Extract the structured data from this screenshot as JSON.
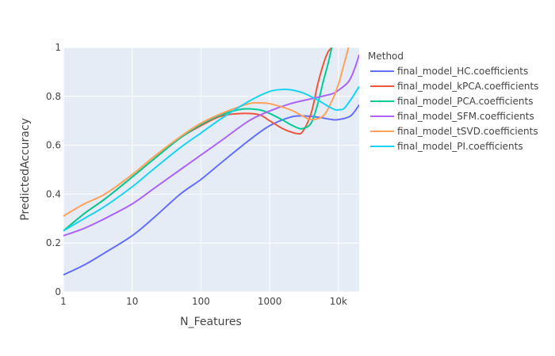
{
  "chart_data": {
    "type": "line",
    "xlabel": "N_Features",
    "ylabel": "PredictedAccuracy",
    "x_scale": "log",
    "xlim": [
      1,
      20000
    ],
    "ylim": [
      0,
      1
    ],
    "x_ticks": [
      {
        "value": 1,
        "label": "1"
      },
      {
        "value": 10,
        "label": "10"
      },
      {
        "value": 100,
        "label": "100"
      },
      {
        "value": 1000,
        "label": "1000"
      },
      {
        "value": 10000,
        "label": "10k"
      }
    ],
    "y_ticks": [
      {
        "value": 0,
        "label": "0"
      },
      {
        "value": 0.2,
        "label": "0.2"
      },
      {
        "value": 0.4,
        "label": "0.4"
      },
      {
        "value": 0.6,
        "label": "0.6"
      },
      {
        "value": 0.8,
        "label": "0.8"
      },
      {
        "value": 1,
        "label": "1"
      }
    ],
    "grid": true,
    "legend_title": "Method",
    "legend_position": "right",
    "series": [
      {
        "name": "final_model_HC.coefficients",
        "color": "#636efa",
        "x": [
          1,
          2,
          4,
          10,
          20,
          50,
          100,
          200,
          500,
          1000,
          2000,
          3000,
          5000,
          8000,
          10000,
          15000,
          20000
        ],
        "y": [
          0.07,
          0.11,
          0.16,
          0.23,
          0.3,
          0.4,
          0.46,
          0.53,
          0.62,
          0.68,
          0.715,
          0.72,
          0.715,
          0.705,
          0.705,
          0.72,
          0.765
        ]
      },
      {
        "name": "final_model_kPCA.coefficients",
        "color": "#EF553B",
        "x": [
          1,
          2,
          4,
          10,
          20,
          50,
          100,
          200,
          400,
          700,
          1000,
          1500,
          2000,
          2500,
          3000,
          4000,
          5000,
          6000,
          7000,
          8000
        ],
        "y": [
          0.25,
          0.32,
          0.38,
          0.47,
          0.54,
          0.63,
          0.68,
          0.72,
          0.73,
          0.725,
          0.7,
          0.67,
          0.655,
          0.648,
          0.655,
          0.73,
          0.85,
          0.93,
          0.98,
          1.0
        ]
      },
      {
        "name": "final_model_PCA.coefficients",
        "color": "#00cc96",
        "x": [
          1,
          2,
          4,
          10,
          20,
          50,
          100,
          200,
          400,
          700,
          1000,
          1500,
          2000,
          2500,
          3000,
          4000,
          5000,
          6000,
          7000,
          8000
        ],
        "y": [
          0.25,
          0.32,
          0.38,
          0.47,
          0.54,
          0.63,
          0.685,
          0.725,
          0.748,
          0.745,
          0.73,
          0.705,
          0.685,
          0.672,
          0.668,
          0.69,
          0.77,
          0.86,
          0.93,
          1.0
        ]
      },
      {
        "name": "final_model_SFM.coefficients",
        "color": "#ab63fa",
        "x": [
          1,
          2,
          4,
          10,
          20,
          50,
          100,
          200,
          500,
          1000,
          2000,
          4000,
          8000,
          10000,
          14000,
          17000,
          20000
        ],
        "y": [
          0.23,
          0.26,
          0.3,
          0.36,
          0.42,
          0.5,
          0.56,
          0.62,
          0.7,
          0.74,
          0.77,
          0.79,
          0.81,
          0.825,
          0.86,
          0.91,
          0.97
        ]
      },
      {
        "name": "final_model_tSVD.coefficients",
        "color": "#FFA15A",
        "x": [
          1,
          2,
          4,
          10,
          20,
          50,
          100,
          200,
          500,
          700,
          1000,
          2000,
          3000,
          4000,
          6000,
          8000,
          10000,
          12000,
          14000
        ],
        "y": [
          0.31,
          0.36,
          0.4,
          0.48,
          0.55,
          0.635,
          0.69,
          0.73,
          0.77,
          0.773,
          0.77,
          0.745,
          0.72,
          0.705,
          0.72,
          0.78,
          0.85,
          0.93,
          1.0
        ]
      },
      {
        "name": "final_model_PI.coefficients",
        "color": "#19d3f3",
        "x": [
          1,
          2,
          4,
          10,
          20,
          50,
          100,
          200,
          500,
          1000,
          1500,
          2000,
          3000,
          5000,
          7000,
          9000,
          10000,
          12000,
          15000,
          20000
        ],
        "y": [
          0.25,
          0.3,
          0.35,
          0.43,
          0.5,
          0.59,
          0.65,
          0.71,
          0.78,
          0.82,
          0.828,
          0.827,
          0.815,
          0.785,
          0.76,
          0.745,
          0.745,
          0.75,
          0.785,
          0.84
        ]
      }
    ]
  }
}
